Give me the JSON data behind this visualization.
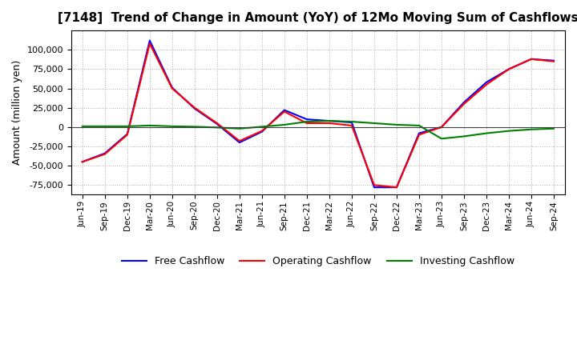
{
  "title": "[7148]  Trend of Change in Amount (YoY) of 12Mo Moving Sum of Cashflows",
  "ylabel": "Amount (million yen)",
  "ylim": [
    -87500,
    125000
  ],
  "yticks": [
    -75000,
    -50000,
    -25000,
    0,
    25000,
    50000,
    75000,
    100000
  ],
  "x_labels": [
    "Jun-19",
    "Sep-19",
    "Dec-19",
    "Mar-20",
    "Jun-20",
    "Sep-20",
    "Dec-20",
    "Mar-21",
    "Jun-21",
    "Sep-21",
    "Dec-21",
    "Mar-22",
    "Jun-22",
    "Sep-22",
    "Dec-22",
    "Mar-23",
    "Jun-23",
    "Sep-23",
    "Dec-23",
    "Mar-24",
    "Jun-24",
    "Sep-24"
  ],
  "operating_cashflow": [
    -45000,
    -35000,
    -10000,
    108000,
    50000,
    25000,
    5000,
    -18000,
    -5000,
    20000,
    5000,
    5000,
    2000,
    -75000,
    -78000,
    -10000,
    0,
    30000,
    55000,
    75000,
    88000,
    85000
  ],
  "investing_cashflow": [
    1000,
    1000,
    1000,
    2000,
    1000,
    500,
    -500,
    -2000,
    500,
    3000,
    7000,
    8000,
    7000,
    5000,
    3000,
    2000,
    -15000,
    -12000,
    -8000,
    -5000,
    -3000,
    -2000
  ],
  "free_cashflow": [
    -45000,
    -34000,
    -9000,
    112000,
    51000,
    24000,
    4000,
    -20000,
    -6000,
    22000,
    10000,
    8000,
    6000,
    -78000,
    -78000,
    -8000,
    0,
    32000,
    58000,
    75000,
    88000,
    86000
  ],
  "operating_color": "#ff0000",
  "investing_color": "#008000",
  "free_color": "#0000ff",
  "background_color": "#ffffff",
  "grid_color": "#b0b0b0",
  "title_fontsize": 11,
  "legend_labels": [
    "Operating Cashflow",
    "Investing Cashflow",
    "Free Cashflow"
  ]
}
